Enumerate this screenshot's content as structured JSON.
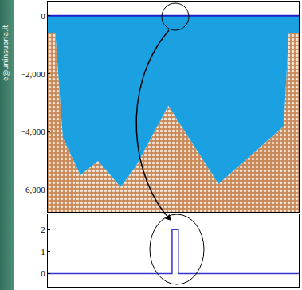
{
  "chart_data": [
    {
      "type": "area",
      "x": [
        0,
        3,
        6,
        13,
        20,
        29,
        35,
        48,
        68,
        94,
        96,
        100
      ],
      "values": [
        -600,
        -600,
        -4200,
        -5500,
        -5000,
        -5900,
        -5200,
        -3100,
        -5800,
        -3800,
        -600,
        -600
      ],
      "surface_level": 0,
      "color": "#1ba1e2",
      "xlim": [
        0,
        100
      ],
      "ylim": [
        -6760,
        490
      ],
      "yticks": [
        0,
        {
          "value": -2000,
          "label": "−2,000"
        },
        {
          "value": -4000,
          "label": "−4,000"
        },
        {
          "value": -6000,
          "label": "−6,000"
        }
      ],
      "tick_labels": "y",
      "grid": false
    },
    {
      "type": "line",
      "x": [
        0,
        49.5,
        49.5,
        52,
        52,
        100
      ],
      "values": [
        0,
        0,
        2,
        2,
        0,
        0
      ],
      "color": "#3434d0",
      "xlim": [
        0,
        100
      ],
      "ylim": [
        -0.6,
        2.7
      ],
      "yticks": [
        0,
        1,
        2
      ],
      "tick_labels": "y",
      "grid": false
    }
  ],
  "side_text": "e@uninsubria.it"
}
